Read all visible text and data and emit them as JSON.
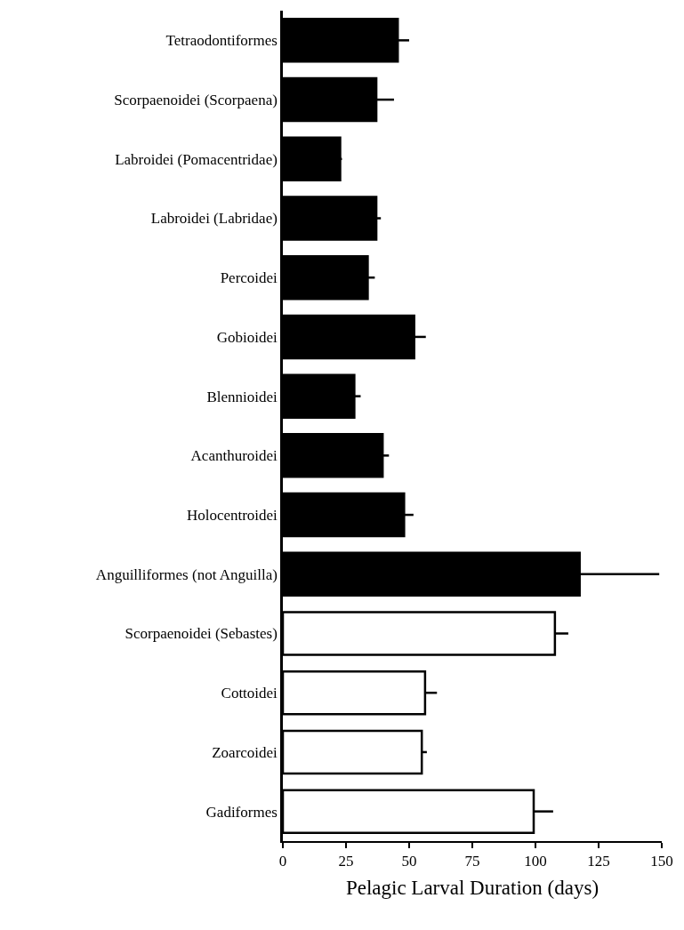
{
  "chart_data": {
    "type": "bar",
    "orientation": "horizontal",
    "xlabel": "Pelagic Larval Duration (days)",
    "categories": [
      "Tetraodontiformes",
      "Scorpaenoidei (Scorpaena)",
      "Labroidei (Pomacentridae)",
      "Labroidei (Labridae)",
      "Percoidei",
      "Gobioidei",
      "Blennioidei",
      "Acanthuroidei",
      "Holocentroidei",
      "Anguilliformes (not Anguilla)",
      "Scorpaenoidei (Sebastes)",
      "Cottoidei",
      "Zoarcoidei",
      "Gadiformes"
    ],
    "values": [
      45.5,
      37,
      22.7,
      37,
      33.6,
      52,
      28.3,
      39.5,
      48,
      117.5,
      107.7,
      56.3,
      55,
      99.3
    ],
    "errors": [
      [
        45.5,
        50
      ],
      [
        37,
        44
      ],
      [
        22.7,
        23.4
      ],
      [
        37,
        38.8
      ],
      [
        33.6,
        36.4
      ],
      [
        52,
        56.6
      ],
      [
        28.3,
        30.8
      ],
      [
        39.5,
        42
      ],
      [
        48,
        51.7
      ],
      [
        117.5,
        149
      ],
      [
        107.7,
        113
      ],
      [
        56.3,
        61
      ],
      [
        55,
        57
      ],
      [
        99.3,
        107
      ]
    ],
    "colors": [
      "#000000",
      "#000000",
      "#000000",
      "#000000",
      "#000000",
      "#000000",
      "#000000",
      "#000000",
      "#000000",
      "#000000",
      "#ffffff",
      "#ffffff",
      "#ffffff",
      "#ffffff"
    ],
    "xlim": [
      0,
      150
    ],
    "xticks": [
      0,
      25,
      50,
      75,
      100,
      125,
      150
    ]
  }
}
